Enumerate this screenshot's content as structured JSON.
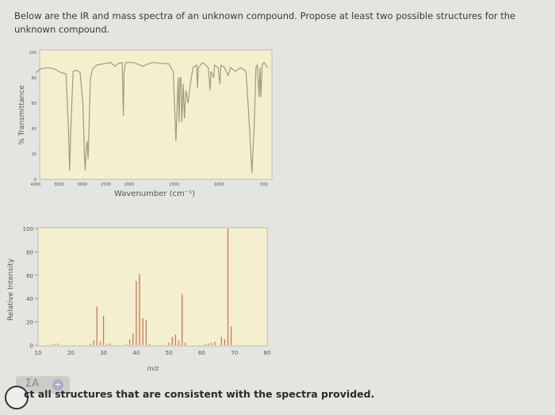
{
  "question": "Below are the IR and mass spectra of an unknown compound. Propose at least two possible structures for the unknown compound.",
  "instruction": "ct all structures that are consistent with the spectra provided.",
  "toolbar": {
    "label": "ΣA",
    "plus": "+"
  },
  "colors": {
    "plot_bg": "#f4efcf",
    "ir_trace": "#9c9c7c",
    "ms_bar": "#c9785a",
    "page_bg": "#e4e4e0"
  },
  "chart_data": [
    {
      "type": "line",
      "title": "",
      "xlabel": "Wavenumber (cm⁻¹)",
      "ylabel": "% Transmittance",
      "xlim": [
        4000,
        400
      ],
      "ylim": [
        0,
        100
      ],
      "xticks": [
        4000,
        3500,
        3000,
        2500,
        2000,
        1500,
        1000,
        500
      ],
      "yticks": [
        0,
        20,
        40,
        60,
        80,
        100
      ],
      "grid": false,
      "points": [
        [
          4000,
          84
        ],
        [
          3900,
          87
        ],
        [
          3750,
          88
        ],
        [
          3600,
          87
        ],
        [
          3450,
          84
        ],
        [
          3350,
          83
        ],
        [
          3300,
          40
        ],
        [
          3275,
          7
        ],
        [
          3250,
          40
        ],
        [
          3200,
          85
        ],
        [
          3120,
          86
        ],
        [
          3050,
          84
        ],
        [
          2990,
          60
        ],
        [
          2960,
          20
        ],
        [
          2940,
          7
        ],
        [
          2920,
          25
        ],
        [
          2900,
          30
        ],
        [
          2880,
          16
        ],
        [
          2860,
          40
        ],
        [
          2830,
          80
        ],
        [
          2780,
          87
        ],
        [
          2700,
          90
        ],
        [
          2550,
          91
        ],
        [
          2400,
          92
        ],
        [
          2300,
          89
        ],
        [
          2250,
          91
        ],
        [
          2150,
          92
        ],
        [
          2125,
          50
        ],
        [
          2110,
          85
        ],
        [
          2080,
          92
        ],
        [
          1950,
          92
        ],
        [
          1850,
          89
        ],
        [
          1750,
          92
        ],
        [
          1560,
          91
        ],
        [
          1510,
          85
        ],
        [
          1480,
          30
        ],
        [
          1470,
          50
        ],
        [
          1455,
          80
        ],
        [
          1445,
          45
        ],
        [
          1435,
          80
        ],
        [
          1425,
          80
        ],
        [
          1415,
          45
        ],
        [
          1400,
          75
        ],
        [
          1385,
          48
        ],
        [
          1370,
          70
        ],
        [
          1345,
          60
        ],
        [
          1320,
          75
        ],
        [
          1290,
          88
        ],
        [
          1250,
          90
        ],
        [
          1240,
          72
        ],
        [
          1230,
          88
        ],
        [
          1180,
          92
        ],
        [
          1120,
          88
        ],
        [
          1100,
          70
        ],
        [
          1090,
          85
        ],
        [
          1060,
          80
        ],
        [
          1050,
          90
        ],
        [
          1010,
          88
        ],
        [
          990,
          75
        ],
        [
          980,
          90
        ],
        [
          940,
          88
        ],
        [
          900,
          82
        ],
        [
          870,
          88
        ],
        [
          820,
          85
        ],
        [
          760,
          88
        ],
        [
          700,
          85
        ],
        [
          660,
          40
        ],
        [
          635,
          5
        ],
        [
          610,
          40
        ],
        [
          590,
          88
        ],
        [
          575,
          90
        ],
        [
          555,
          65
        ],
        [
          545,
          88
        ],
        [
          535,
          65
        ],
        [
          520,
          90
        ],
        [
          500,
          92
        ],
        [
          460,
          88
        ]
      ]
    },
    {
      "type": "bar",
      "title": "",
      "xlabel": "m/z",
      "ylabel": "Relative Intensity",
      "xlim": [
        10,
        80
      ],
      "ylim": [
        0,
        100
      ],
      "xticks": [
        10,
        20,
        30,
        40,
        50,
        60,
        70,
        80
      ],
      "yticks": [
        0,
        20,
        40,
        60,
        80,
        100
      ],
      "grid": false,
      "peaks": [
        [
          14,
          0.5
        ],
        [
          15,
          1
        ],
        [
          16,
          1.5
        ],
        [
          26,
          1
        ],
        [
          27,
          4
        ],
        [
          28,
          33
        ],
        [
          29,
          3
        ],
        [
          30,
          25
        ],
        [
          31,
          1
        ],
        [
          32,
          1.5
        ],
        [
          37,
          1
        ],
        [
          38,
          5
        ],
        [
          39,
          10
        ],
        [
          40,
          55
        ],
        [
          41,
          61
        ],
        [
          42,
          23
        ],
        [
          43,
          22
        ],
        [
          44,
          1
        ],
        [
          50,
          2
        ],
        [
          51,
          7
        ],
        [
          52,
          9
        ],
        [
          53,
          4
        ],
        [
          54,
          44
        ],
        [
          55,
          2
        ],
        [
          61,
          1
        ],
        [
          62,
          1.5
        ],
        [
          63,
          2
        ],
        [
          64,
          3
        ],
        [
          66,
          7
        ],
        [
          67,
          5
        ],
        [
          68,
          100
        ],
        [
          69,
          16
        ]
      ]
    }
  ]
}
